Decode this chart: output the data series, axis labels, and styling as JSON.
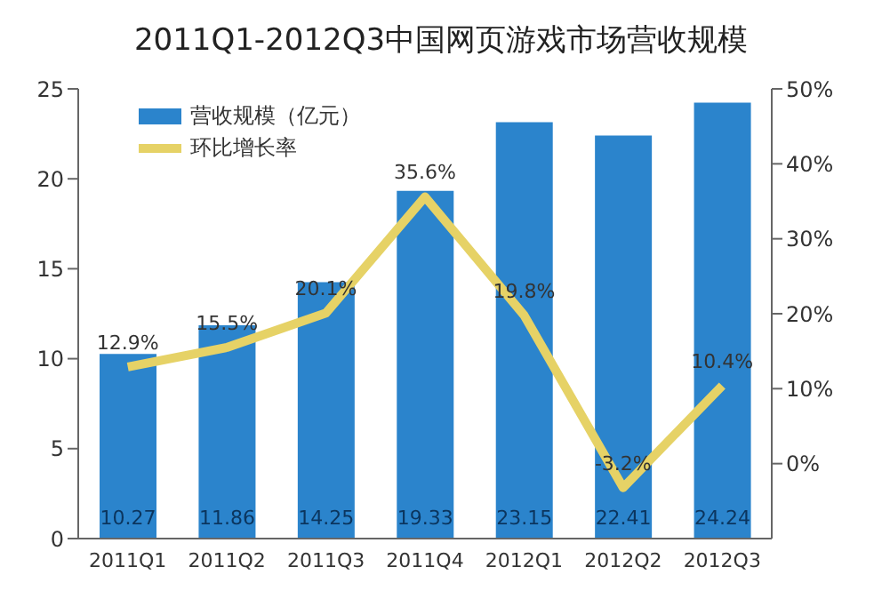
{
  "chart_data": {
    "type": "bar",
    "title": "2011Q1-2012Q3中国网页游戏市场营收规模",
    "categories": [
      "2011Q1",
      "2011Q2",
      "2011Q3",
      "2011Q4",
      "2012Q1",
      "2012Q2",
      "2012Q3"
    ],
    "series": [
      {
        "name": "营收规模（亿元）",
        "color": "#2b84cc",
        "values": [
          10.27,
          11.86,
          14.25,
          19.33,
          23.15,
          22.41,
          24.24
        ]
      },
      {
        "name": "环比增长率",
        "type": "line",
        "axis": "y2",
        "color": "#e6d266",
        "values": [
          12.9,
          15.5,
          20.1,
          35.6,
          19.8,
          -3.2,
          10.4
        ],
        "value_labels": [
          "12.9%",
          "15.5%",
          "20.1%",
          "35.6%",
          "19.8%",
          "-3.2%",
          "10.4%"
        ]
      }
    ],
    "ylim": [
      0,
      25
    ],
    "yticks": [
      0,
      5,
      10,
      15,
      20,
      25
    ],
    "y2lim": [
      -10,
      50
    ],
    "y2ticks": [
      {
        "value": 0,
        "label": "0%"
      },
      {
        "value": 10,
        "label": "10%"
      },
      {
        "value": 20,
        "label": "20%"
      },
      {
        "value": 30,
        "label": "30%"
      },
      {
        "value": 40,
        "label": "40%"
      },
      {
        "value": 50,
        "label": "50%"
      }
    ],
    "data_labels": true,
    "legend": "top left",
    "grid": false,
    "marker": "none"
  }
}
